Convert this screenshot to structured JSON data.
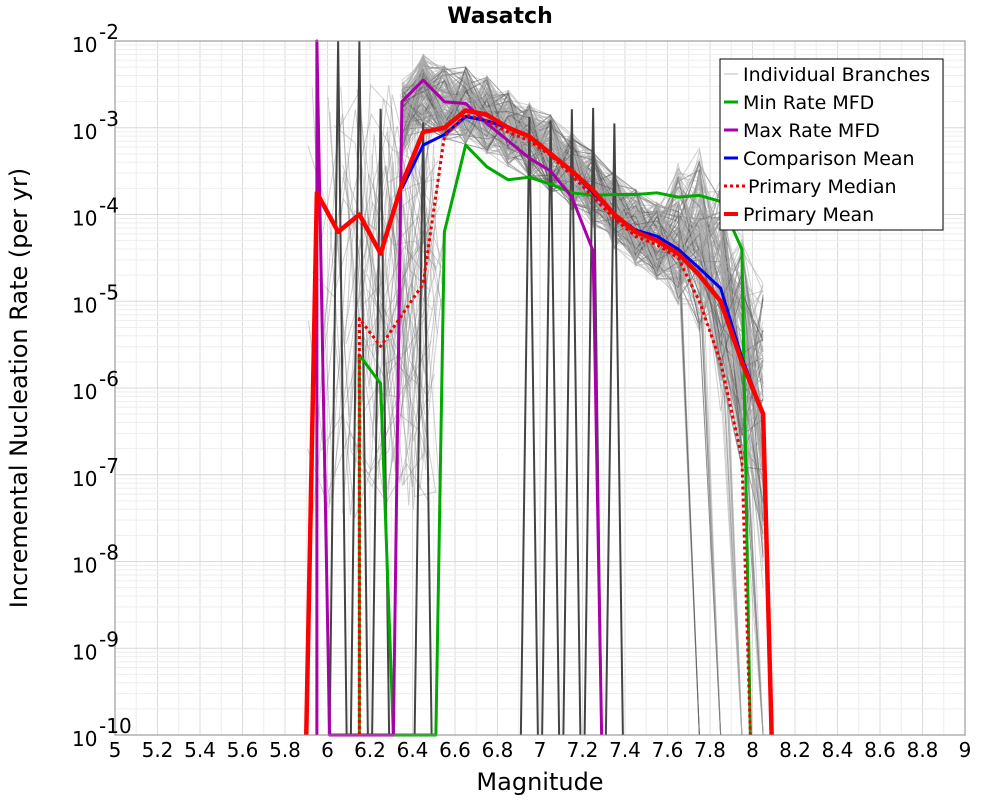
{
  "chart_data": {
    "type": "line",
    "title": "Wasatch",
    "xlabel": "Magnitude",
    "ylabel": "Incremental Nucleation Rate (per yr)",
    "xlim": [
      5,
      9
    ],
    "ylim_log10": [
      -10,
      -2
    ],
    "yscale": "log",
    "x_ticks": [
      5,
      5.2,
      5.4,
      5.6,
      5.8,
      6,
      6.2,
      6.4,
      6.6,
      6.8,
      7,
      7.2,
      7.4,
      7.6,
      7.8,
      8,
      8.2,
      8.4,
      8.6,
      8.8,
      9
    ],
    "x_tick_labels": [
      "5",
      "5.2",
      "5.4",
      "5.6",
      "5.8",
      "6",
      "6.2",
      "6.4",
      "6.6",
      "6.8",
      "7",
      "7.2",
      "7.4",
      "7.6",
      "7.8",
      "8",
      "8.2",
      "8.4",
      "8.6",
      "8.8",
      "9"
    ],
    "y_tick_exponents": [
      -10,
      -9,
      -8,
      -7,
      -6,
      -5,
      -4,
      -3,
      -2
    ],
    "y_tick_base": "10",
    "grid": true,
    "legend_position": "top-right",
    "legend": [
      {
        "label": "Individual Branches",
        "color": "#bbbbbb",
        "style": "solid-thin"
      },
      {
        "label": "Min Rate MFD",
        "color": "#00aa00",
        "style": "solid"
      },
      {
        "label": "Max Rate MFD",
        "color": "#aa00aa",
        "style": "solid"
      },
      {
        "label": "Comparison Mean",
        "color": "#0000ee",
        "style": "solid"
      },
      {
        "label": " Primary Median",
        "color": "#ee0000",
        "style": "dotted"
      },
      {
        "label": "Primary Mean",
        "color": "#ff0000",
        "style": "solid-thick"
      }
    ],
    "series": [
      {
        "name": "Min Rate MFD",
        "color": "#00aa00",
        "width": 3,
        "x": [
          6.15,
          6.15,
          6.25,
          6.31,
          6.51,
          6.55,
          6.65,
          6.75,
          6.85,
          6.95,
          7.05,
          7.15,
          7.25,
          7.35,
          7.45,
          7.55,
          7.65,
          7.75,
          7.85,
          7.95,
          7.99
        ],
        "log10": [
          -10,
          -5.62,
          -5.95,
          -10,
          -10,
          -4.2,
          -3.2,
          -3.45,
          -3.6,
          -3.57,
          -3.65,
          -3.75,
          -3.78,
          -3.77,
          -3.77,
          -3.75,
          -3.8,
          -3.78,
          -3.85,
          -4.4,
          -10
        ]
      },
      {
        "name": "Max Rate MFD",
        "color": "#aa00aa",
        "width": 3,
        "x": [
          5.95,
          5.95,
          6.01,
          6.31,
          6.35,
          6.45,
          6.55,
          6.65,
          6.75,
          6.85,
          6.95,
          7.05,
          7.15,
          7.25,
          7.29
        ],
        "log10": [
          -10,
          -2,
          -10,
          -10,
          -2.7,
          -2.45,
          -2.7,
          -2.72,
          -2.95,
          -3.15,
          -3.35,
          -3.5,
          -3.8,
          -4.42,
          -10
        ]
      },
      {
        "name": "Comparison Mean",
        "color": "#0000ee",
        "width": 3,
        "x": [
          6.35,
          6.45,
          6.55,
          6.65,
          6.75,
          6.85,
          6.95,
          7.05,
          7.15,
          7.25,
          7.35,
          7.45,
          7.55,
          7.65,
          7.75,
          7.85,
          7.95,
          8.05
        ],
        "log10": [
          -3.7,
          -3.2,
          -3.08,
          -2.87,
          -2.92,
          -3.0,
          -3.1,
          -3.3,
          -3.5,
          -3.75,
          -4.0,
          -4.18,
          -4.25,
          -4.4,
          -4.62,
          -4.85,
          -5.65,
          -6.3
        ]
      },
      {
        "name": "Primary Median",
        "color": "#ee0000",
        "width": 3,
        "dashed": true,
        "x": [
          6.15,
          6.15,
          6.25,
          6.45,
          6.55,
          6.65,
          6.75,
          6.85,
          6.95,
          7.05,
          7.15,
          7.25,
          7.35,
          7.45,
          7.55,
          7.65,
          7.75,
          7.85,
          7.95,
          7.99
        ],
        "log10": [
          -10,
          -5.2,
          -5.52,
          -4.8,
          -3.1,
          -2.85,
          -2.92,
          -3.05,
          -3.15,
          -3.32,
          -3.55,
          -3.8,
          -4.05,
          -4.25,
          -4.35,
          -4.5,
          -5.0,
          -5.7,
          -6.8,
          -10
        ]
      },
      {
        "name": "Primary Mean",
        "color": "#ff0000",
        "width": 4.5,
        "x": [
          5.9,
          5.95,
          6.05,
          6.15,
          6.25,
          6.35,
          6.45,
          6.55,
          6.65,
          6.75,
          6.85,
          6.95,
          7.05,
          7.15,
          7.25,
          7.35,
          7.45,
          7.55,
          7.65,
          7.75,
          7.85,
          7.95,
          8.05,
          8.09
        ],
        "log10": [
          -10,
          -3.75,
          -4.2,
          -4.0,
          -4.45,
          -3.65,
          -3.05,
          -3.0,
          -2.8,
          -2.85,
          -3.0,
          -3.1,
          -3.3,
          -3.5,
          -3.72,
          -4.0,
          -4.2,
          -4.3,
          -4.45,
          -4.7,
          -5.0,
          -5.7,
          -6.3,
          -10
        ]
      }
    ],
    "branch_profile": {
      "x": [
        6.35,
        6.45,
        6.55,
        6.65,
        6.75,
        6.85,
        6.95,
        7.05,
        7.15,
        7.25,
        7.35,
        7.45,
        7.55,
        7.65,
        7.75,
        7.85,
        7.95,
        8.05
      ],
      "log10": [
        -2.9,
        -2.6,
        -2.7,
        -2.75,
        -2.85,
        -3.0,
        -3.15,
        -3.3,
        -3.5,
        -3.7,
        -3.95,
        -4.15,
        -4.3,
        -4.45,
        -4.7,
        -5.3,
        -6.2,
        -7.0
      ]
    }
  }
}
